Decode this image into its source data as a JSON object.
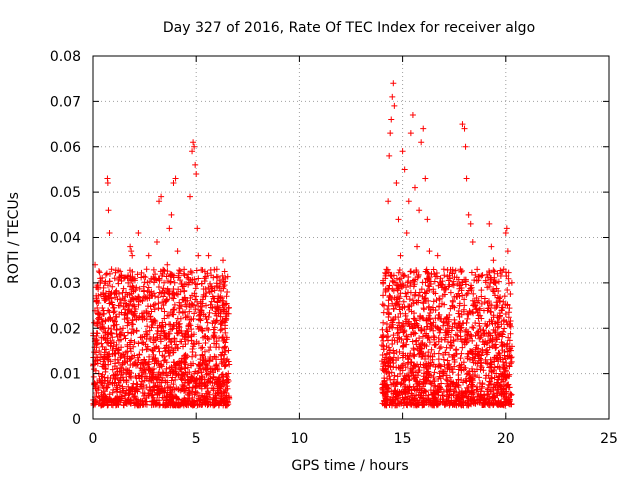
{
  "chart_data": {
    "type": "scatter",
    "title": "Day 327 of 2016, Rate Of TEC Index for receiver algo",
    "xlabel": "GPS time / hours",
    "ylabel": "ROTI / TECUs",
    "xlim": [
      0,
      25
    ],
    "ylim": [
      0,
      0.08
    ],
    "xticks": [
      0,
      5,
      10,
      15,
      20,
      25
    ],
    "yticks": [
      0,
      0.01,
      0.02,
      0.03,
      0.04,
      0.05,
      0.06,
      0.07,
      0.08
    ],
    "xtick_labels": [
      "0",
      "5",
      "10",
      "15",
      "20",
      "25"
    ],
    "ytick_labels": [
      "0",
      "0.01",
      "0.02",
      "0.03",
      "0.04",
      "0.05",
      "0.06",
      "0.07",
      "0.08"
    ],
    "grid": true,
    "marker": "+",
    "color": "#ff0000",
    "series": [
      {
        "points": [
          [
            0.05,
            0.012
          ],
          [
            0.1,
            0.034
          ],
          [
            0.15,
            0.021
          ],
          [
            0.2,
            0.008
          ],
          [
            0.25,
            0.029
          ],
          [
            0.3,
            0.015
          ],
          [
            0.35,
            0.031
          ],
          [
            0.4,
            0.005
          ],
          [
            0.5,
            0.018
          ],
          [
            0.55,
            0.027
          ],
          [
            0.6,
            0.012
          ],
          [
            0.7,
            0.053
          ],
          [
            0.72,
            0.052
          ],
          [
            0.75,
            0.046
          ],
          [
            0.8,
            0.041
          ],
          [
            0.85,
            0.022
          ],
          [
            0.9,
            0.033
          ],
          [
            1.0,
            0.016
          ],
          [
            1.1,
            0.028
          ],
          [
            1.2,
            0.009
          ],
          [
            1.3,
            0.025
          ],
          [
            1.4,
            0.019
          ],
          [
            1.5,
            0.031
          ],
          [
            1.6,
            0.011
          ],
          [
            1.7,
            0.024
          ],
          [
            1.8,
            0.038
          ],
          [
            1.85,
            0.037
          ],
          [
            1.9,
            0.036
          ],
          [
            2.0,
            0.014
          ],
          [
            2.1,
            0.029
          ],
          [
            2.2,
            0.041
          ],
          [
            2.3,
            0.018
          ],
          [
            2.4,
            0.026
          ],
          [
            2.5,
            0.011
          ],
          [
            2.6,
            0.033
          ],
          [
            2.7,
            0.036
          ],
          [
            2.8,
            0.022
          ],
          [
            2.9,
            0.015
          ],
          [
            3.0,
            0.031
          ],
          [
            3.1,
            0.039
          ],
          [
            3.2,
            0.048
          ],
          [
            3.3,
            0.049
          ],
          [
            3.4,
            0.027
          ],
          [
            3.5,
            0.013
          ],
          [
            3.6,
            0.034
          ],
          [
            3.7,
            0.042
          ],
          [
            3.8,
            0.045
          ],
          [
            3.9,
            0.052
          ],
          [
            4.0,
            0.053
          ],
          [
            4.1,
            0.037
          ],
          [
            4.2,
            0.021
          ],
          [
            4.3,
            0.011
          ],
          [
            4.4,
            0.032
          ],
          [
            4.5,
            0.026
          ],
          [
            4.6,
            0.018
          ],
          [
            4.7,
            0.049
          ],
          [
            4.8,
            0.059
          ],
          [
            4.85,
            0.061
          ],
          [
            4.9,
            0.06
          ],
          [
            4.95,
            0.056
          ],
          [
            5.0,
            0.054
          ],
          [
            5.05,
            0.042
          ],
          [
            5.1,
            0.036
          ],
          [
            5.2,
            0.024
          ],
          [
            5.3,
            0.014
          ],
          [
            5.4,
            0.031
          ],
          [
            5.5,
            0.022
          ],
          [
            5.6,
            0.036
          ],
          [
            5.7,
            0.011
          ],
          [
            5.8,
            0.027
          ],
          [
            5.9,
            0.019
          ],
          [
            6.0,
            0.033
          ],
          [
            6.1,
            0.009
          ],
          [
            6.2,
            0.024
          ],
          [
            6.3,
            0.035
          ],
          [
            6.4,
            0.016
          ],
          [
            6.5,
            0.028
          ],
          [
            6.6,
            0.012
          ],
          [
            14.0,
            0.018
          ],
          [
            14.1,
            0.025
          ],
          [
            14.2,
            0.032
          ],
          [
            14.3,
            0.048
          ],
          [
            14.35,
            0.058
          ],
          [
            14.4,
            0.063
          ],
          [
            14.45,
            0.066
          ],
          [
            14.5,
            0.071
          ],
          [
            14.55,
            0.074
          ],
          [
            14.6,
            0.069
          ],
          [
            14.7,
            0.052
          ],
          [
            14.8,
            0.044
          ],
          [
            14.9,
            0.036
          ],
          [
            15.0,
            0.059
          ],
          [
            15.1,
            0.055
          ],
          [
            15.2,
            0.041
          ],
          [
            15.3,
            0.048
          ],
          [
            15.4,
            0.063
          ],
          [
            15.5,
            0.067
          ],
          [
            15.6,
            0.051
          ],
          [
            15.7,
            0.038
          ],
          [
            15.8,
            0.046
          ],
          [
            15.9,
            0.061
          ],
          [
            16.0,
            0.064
          ],
          [
            16.1,
            0.053
          ],
          [
            16.2,
            0.044
          ],
          [
            16.3,
            0.037
          ],
          [
            16.4,
            0.032
          ],
          [
            16.5,
            0.028
          ],
          [
            16.6,
            0.024
          ],
          [
            16.7,
            0.036
          ],
          [
            16.8,
            0.019
          ],
          [
            16.9,
            0.029
          ],
          [
            17.0,
            0.033
          ],
          [
            17.1,
            0.022
          ],
          [
            17.2,
            0.017
          ],
          [
            17.3,
            0.031
          ],
          [
            17.4,
            0.025
          ],
          [
            17.5,
            0.014
          ],
          [
            17.6,
            0.027
          ],
          [
            17.7,
            0.021
          ],
          [
            17.8,
            0.033
          ],
          [
            17.9,
            0.065
          ],
          [
            18.0,
            0.064
          ],
          [
            18.05,
            0.06
          ],
          [
            18.1,
            0.053
          ],
          [
            18.2,
            0.045
          ],
          [
            18.3,
            0.043
          ],
          [
            18.4,
            0.039
          ],
          [
            18.5,
            0.026
          ],
          [
            18.6,
            0.019
          ],
          [
            18.7,
            0.024
          ],
          [
            18.8,
            0.013
          ],
          [
            18.9,
            0.017
          ],
          [
            19.0,
            0.021
          ],
          [
            19.1,
            0.029
          ],
          [
            19.2,
            0.043
          ],
          [
            19.3,
            0.038
          ],
          [
            19.4,
            0.035
          ],
          [
            19.5,
            0.019
          ],
          [
            19.6,
            0.032
          ],
          [
            19.7,
            0.026
          ],
          [
            19.8,
            0.024
          ],
          [
            19.9,
            0.033
          ],
          [
            20.0,
            0.041
          ],
          [
            20.05,
            0.042
          ],
          [
            20.1,
            0.037
          ],
          [
            20.2,
            0.021
          ],
          [
            20.3,
            0.016
          ]
        ]
      }
    ]
  }
}
